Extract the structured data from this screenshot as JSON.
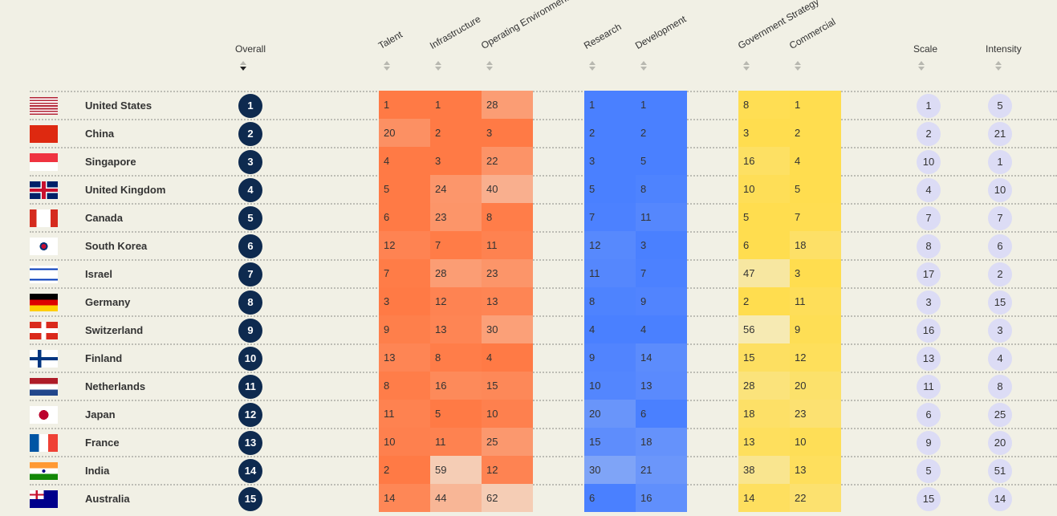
{
  "headers": {
    "overall": "Overall",
    "talent": "Talent",
    "infrastructure": "Infrastructure",
    "operating": "Operating Environment",
    "research": "Research",
    "development": "Development",
    "government": "Government Strategy",
    "commercial": "Commercial",
    "scale": "Scale",
    "intensity": "Intensity"
  },
  "colors": {
    "implementation": "#ff7a45",
    "innovation": "#4a80ff",
    "investment": "#ffdd4f",
    "rank_bg": "#0e2a4f",
    "bubble": "#dcdcf5"
  },
  "rows": [
    {
      "flag": "us",
      "country": "United States",
      "overall": 1,
      "scores": [
        1,
        1,
        28,
        1,
        1,
        8,
        1
      ],
      "scale": 1,
      "intensity": 5
    },
    {
      "flag": "cn",
      "country": "China",
      "overall": 2,
      "scores": [
        20,
        2,
        3,
        2,
        2,
        3,
        2
      ],
      "scale": 2,
      "intensity": 21
    },
    {
      "flag": "sg",
      "country": "Singapore",
      "overall": 3,
      "scores": [
        4,
        3,
        22,
        3,
        5,
        16,
        4
      ],
      "scale": 10,
      "intensity": 1
    },
    {
      "flag": "gb",
      "country": "United Kingdom",
      "overall": 4,
      "scores": [
        5,
        24,
        40,
        5,
        8,
        10,
        5
      ],
      "scale": 4,
      "intensity": 10
    },
    {
      "flag": "ca",
      "country": "Canada",
      "overall": 5,
      "scores": [
        6,
        23,
        8,
        7,
        11,
        5,
        7
      ],
      "scale": 7,
      "intensity": 7
    },
    {
      "flag": "kr",
      "country": "South Korea",
      "overall": 6,
      "scores": [
        12,
        7,
        11,
        12,
        3,
        6,
        18
      ],
      "scale": 8,
      "intensity": 6
    },
    {
      "flag": "il",
      "country": "Israel",
      "overall": 7,
      "scores": [
        7,
        28,
        23,
        11,
        7,
        47,
        3
      ],
      "scale": 17,
      "intensity": 2
    },
    {
      "flag": "de",
      "country": "Germany",
      "overall": 8,
      "scores": [
        3,
        12,
        13,
        8,
        9,
        2,
        11
      ],
      "scale": 3,
      "intensity": 15
    },
    {
      "flag": "ch",
      "country": "Switzerland",
      "overall": 9,
      "scores": [
        9,
        13,
        30,
        4,
        4,
        56,
        9
      ],
      "scale": 16,
      "intensity": 3
    },
    {
      "flag": "fi",
      "country": "Finland",
      "overall": 10,
      "scores": [
        13,
        8,
        4,
        9,
        14,
        15,
        12
      ],
      "scale": 13,
      "intensity": 4
    },
    {
      "flag": "nl",
      "country": "Netherlands",
      "overall": 11,
      "scores": [
        8,
        16,
        15,
        10,
        13,
        28,
        20
      ],
      "scale": 11,
      "intensity": 8
    },
    {
      "flag": "jp",
      "country": "Japan",
      "overall": 12,
      "scores": [
        11,
        5,
        10,
        20,
        6,
        18,
        23
      ],
      "scale": 6,
      "intensity": 25
    },
    {
      "flag": "fr",
      "country": "France",
      "overall": 13,
      "scores": [
        10,
        11,
        25,
        15,
        18,
        13,
        10
      ],
      "scale": 9,
      "intensity": 20
    },
    {
      "flag": "in",
      "country": "India",
      "overall": 14,
      "scores": [
        2,
        59,
        12,
        30,
        21,
        38,
        13
      ],
      "scale": 5,
      "intensity": 51
    },
    {
      "flag": "au",
      "country": "Australia",
      "overall": 15,
      "scores": [
        14,
        44,
        62,
        6,
        16,
        14,
        22
      ],
      "scale": 15,
      "intensity": 14
    }
  ]
}
